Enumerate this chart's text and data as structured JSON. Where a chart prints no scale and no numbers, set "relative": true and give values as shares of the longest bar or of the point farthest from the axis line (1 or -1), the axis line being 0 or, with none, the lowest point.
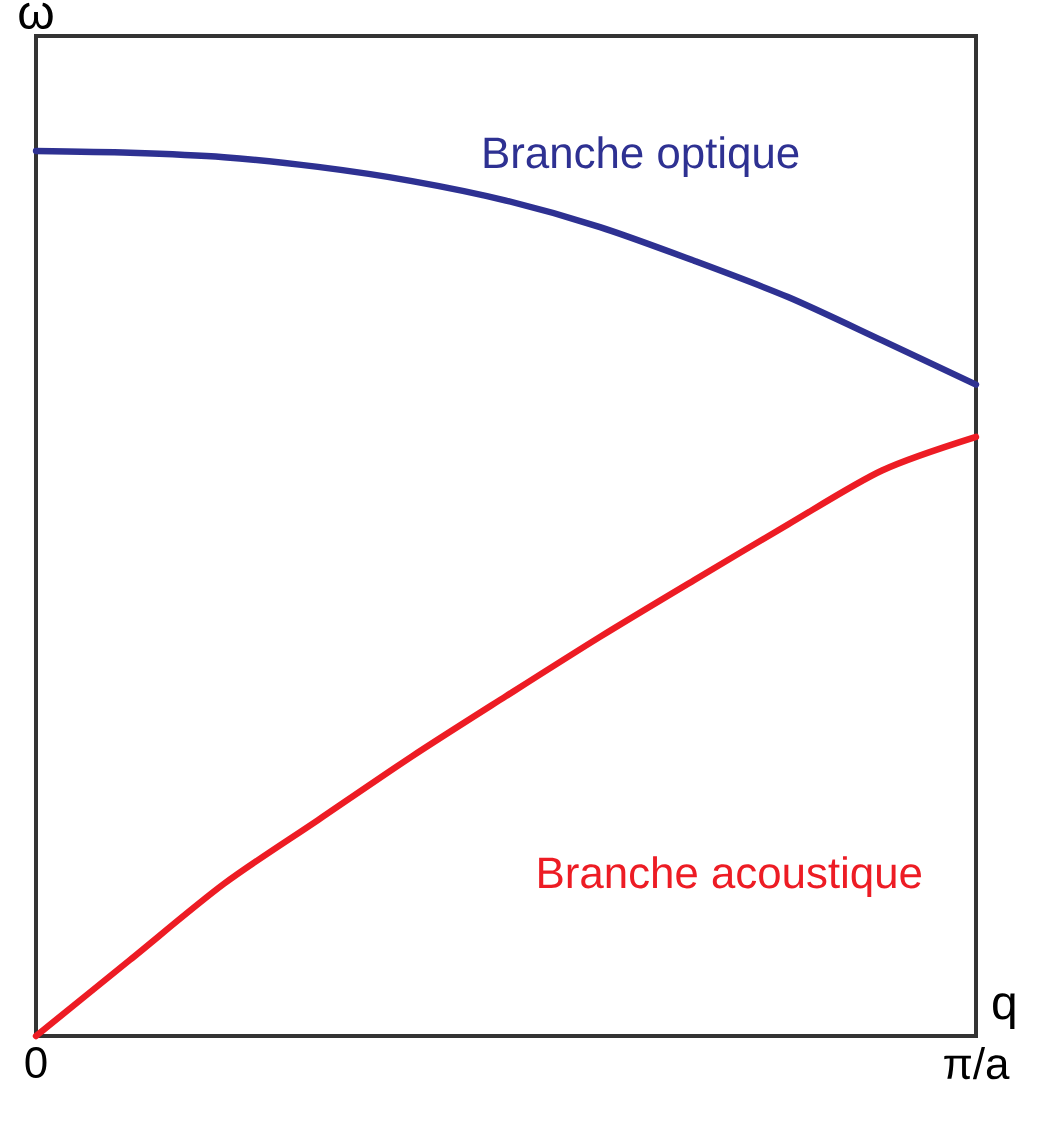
{
  "chart_data": {
    "type": "line",
    "relative": true,
    "xlabel": "q",
    "ylabel": "ω",
    "categories": [
      "0",
      null,
      null,
      null,
      null,
      null,
      null,
      null,
      null,
      null,
      "π/a"
    ],
    "marker": "none",
    "line_style": "solid",
    "series": [
      {
        "name": "Branche optique",
        "color": "#2e3192",
        "values": [
          1,
          0.998,
          0.993,
          0.982,
          0.966,
          0.944,
          0.914,
          0.876,
          0.835,
          0.786,
          0.736
        ]
      },
      {
        "name": "Branche acoustique",
        "color": "#ed1c24",
        "values": [
          0,
          0.086,
          0.172,
          0.244,
          0.316,
          0.384,
          0.451,
          0.515,
          0.578,
          0.639,
          0.677
        ]
      }
    ]
  }
}
